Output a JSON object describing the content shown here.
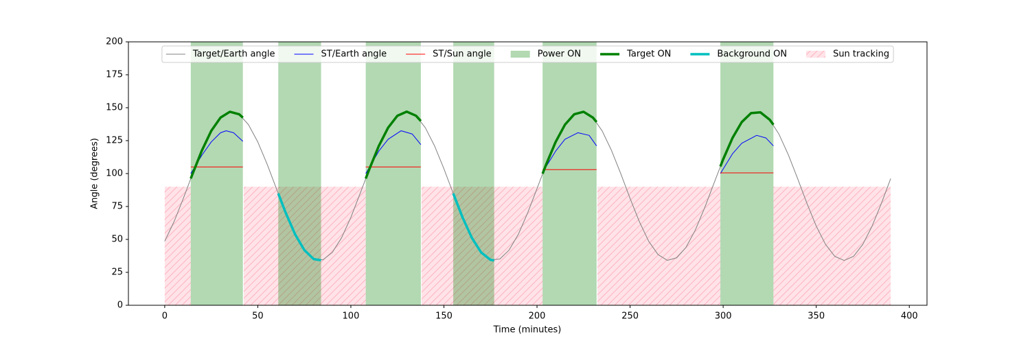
{
  "chart_data": {
    "type": "line",
    "xlabel": "Time (minutes)",
    "ylabel": "Angle (degrees)",
    "xlim": [
      -19.5,
      409.5
    ],
    "ylim": [
      0,
      200
    ],
    "xticks": [
      0,
      50,
      100,
      150,
      200,
      250,
      300,
      350,
      400
    ],
    "yticks": [
      0,
      25,
      50,
      75,
      100,
      125,
      150,
      175,
      200
    ],
    "legend": "upper center",
    "series": [
      {
        "name": "Target/Earth angle",
        "style": "line",
        "color": "#808080",
        "linewidth": 1,
        "x": [
          0,
          5,
          10,
          15,
          20,
          25,
          30,
          35,
          40,
          45,
          50,
          55,
          60,
          65,
          70,
          75,
          80,
          85,
          90,
          95,
          100,
          105,
          110,
          115,
          120,
          125,
          130,
          135,
          140,
          145,
          150,
          155,
          160,
          165,
          170,
          175,
          180,
          185,
          190,
          195,
          200,
          205,
          210,
          215,
          220,
          225,
          230,
          235,
          240,
          245,
          250,
          255,
          260,
          265,
          270,
          275,
          280,
          285,
          290,
          295,
          300,
          305,
          310,
          315,
          320,
          325,
          330,
          335,
          340,
          345,
          350,
          355,
          360,
          365,
          370,
          375,
          380,
          385,
          390
        ],
        "values": [
          48.6,
          63.4,
          81.1,
          99.9,
          117.6,
          132.4,
          142.5,
          146.9,
          145.0,
          137.1,
          124.0,
          107.2,
          88.6,
          70.2,
          54.0,
          41.9,
          35.1,
          34.5,
          40.1,
          51.2,
          66.7,
          84.9,
          103.6,
          120.9,
          134.8,
          143.9,
          147.0,
          143.9,
          134.8,
          120.9,
          103.6,
          84.9,
          66.7,
          51.2,
          40.1,
          34.5,
          35.1,
          41.9,
          54.0,
          70.2,
          88.6,
          107.2,
          124.0,
          137.1,
          145.0,
          146.9,
          142.5,
          132.4,
          117.6,
          99.9,
          81.1,
          63.4,
          48.6,
          38.5,
          34.1,
          36.0,
          43.9,
          57.0,
          73.8,
          92.4,
          110.8,
          127.0,
          139.1,
          145.9,
          146.5,
          140.9,
          129.8,
          114.3,
          96.2,
          77.4,
          60.1,
          46.2,
          37.1,
          34.0,
          37.1,
          46.2,
          60.1,
          77.4,
          96.2
        ]
      },
      {
        "name": "ST/Earth angle",
        "style": "line",
        "color": "#0000ff",
        "linewidth": 1,
        "x": [
          14,
          20,
          25,
          30,
          33,
          37,
          42,
          75,
          108,
          115,
          120,
          127,
          133,
          137.6,
          170,
          203,
          210,
          215,
          222,
          228,
          232,
          265,
          298.5,
          305,
          310,
          318,
          323,
          327
        ],
        "values": [
          100,
          114,
          124,
          131,
          132.5,
          131,
          124.5,
          null,
          100,
          117,
          126,
          132.5,
          130,
          122,
          null,
          101,
          117,
          126,
          131,
          129,
          121,
          null,
          100,
          115,
          123,
          129,
          127,
          121
        ]
      },
      {
        "name": "ST/Sun angle",
        "style": "line",
        "color": "#ff0000",
        "linewidth": 1,
        "x": [
          14,
          42,
          75,
          108,
          137.6,
          170,
          203,
          232,
          265,
          298.5,
          327
        ],
        "values": [
          105,
          105,
          null,
          105,
          105,
          null,
          103,
          103,
          null,
          100.5,
          100.5
        ]
      },
      {
        "name": "Power ON",
        "style": "span",
        "color": "#008000",
        "alpha": 0.3,
        "spans": [
          [
            14,
            42
          ],
          [
            61,
            84
          ],
          [
            108,
            137.6
          ],
          [
            155,
            177
          ],
          [
            203,
            232
          ],
          [
            298.5,
            327
          ]
        ]
      },
      {
        "name": "Target ON",
        "style": "line",
        "color": "#008000",
        "linewidth": 3.5,
        "x": [
          14,
          15,
          20,
          25,
          30,
          35,
          40,
          42,
          75,
          108,
          110,
          115,
          120,
          125,
          130,
          135,
          137.6,
          170,
          203,
          205,
          210,
          215,
          220,
          225,
          230,
          232,
          265,
          298.5,
          300,
          305,
          310,
          315,
          320,
          325,
          327
        ],
        "values": [
          96.2,
          99.9,
          117.6,
          132.4,
          142.5,
          146.9,
          145.0,
          142.5,
          null,
          96.2,
          103.6,
          120.9,
          134.8,
          143.9,
          147.0,
          143.9,
          139.9,
          null,
          99.9,
          107.2,
          124.0,
          137.1,
          145.0,
          146.9,
          142.5,
          139.1,
          null,
          105.4,
          110.8,
          127.0,
          139.1,
          145.9,
          146.5,
          140.9,
          137.1
        ]
      },
      {
        "name": "Background ON",
        "style": "line",
        "color": "#00bfbf",
        "linewidth": 3.5,
        "x": [
          61,
          65,
          70,
          75,
          80,
          84,
          120,
          155,
          160,
          165,
          170,
          175,
          177
        ],
        "values": [
          84.9,
          70.2,
          54.0,
          41.9,
          35.1,
          34.1,
          null,
          84.9,
          66.7,
          51.2,
          40.1,
          34.5,
          34.0
        ]
      },
      {
        "name": "Sun tracking",
        "style": "hatch",
        "color": "#ffc0cb",
        "alpha": 0.45,
        "height": 90,
        "spans": [
          [
            0,
            14
          ],
          [
            42.5,
            108
          ],
          [
            138,
            203
          ],
          [
            232.5,
            298.5
          ],
          [
            327,
            390
          ]
        ]
      }
    ]
  }
}
